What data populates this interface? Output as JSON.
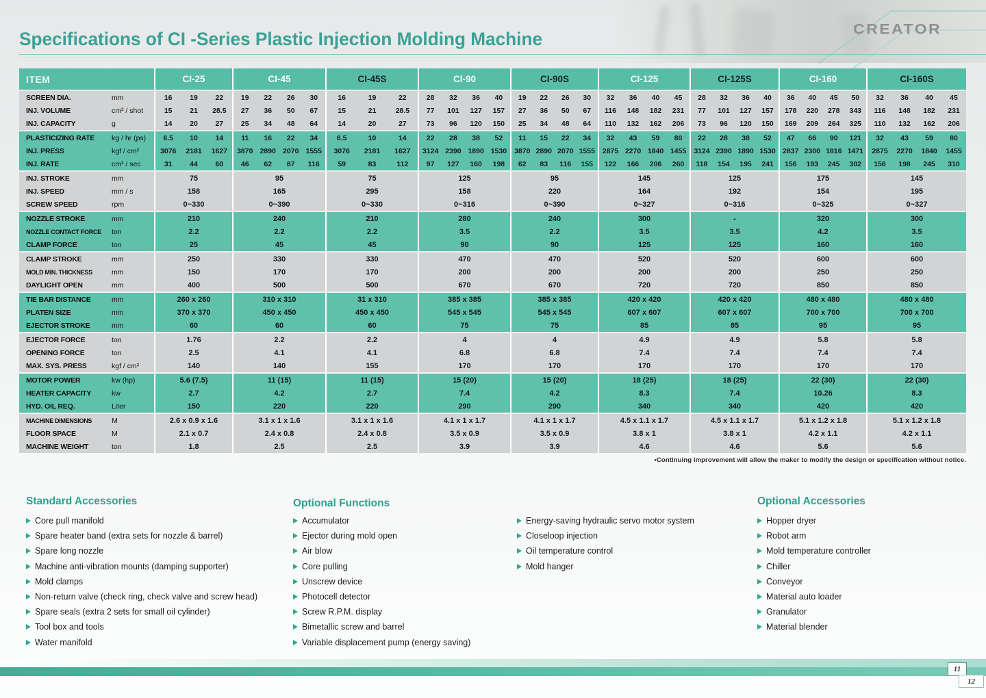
{
  "header": {
    "title": "Specifications of CI -Series Plastic Injection Molding Machine",
    "logo": "CREATOR"
  },
  "colors": {
    "header_teal": "#57bda7",
    "teal_band": "#5fc1ab",
    "gray_band": "#d2d3d4",
    "title_teal": "#3ba196",
    "accent_arrow": "#2fa894"
  },
  "table": {
    "item_header": "ITEM",
    "models": [
      {
        "label": "CI-25",
        "style": "light"
      },
      {
        "label": "CI-45",
        "style": "light"
      },
      {
        "label": "CI-45S",
        "style": "dark"
      },
      {
        "label": "CI-90",
        "style": "light"
      },
      {
        "label": "CI-90S",
        "style": "dark"
      },
      {
        "label": "CI-125",
        "style": "light"
      },
      {
        "label": "CI-125S",
        "style": "dark"
      },
      {
        "label": "CI-160",
        "style": "light"
      },
      {
        "label": "CI-160S",
        "style": "dark"
      }
    ],
    "rows": [
      {
        "label": "SCREEN DIA.",
        "unit": "mm",
        "band": "gray",
        "values": [
          [
            "16",
            "19",
            "22"
          ],
          [
            "19",
            "22",
            "26",
            "30"
          ],
          [
            "16",
            "19",
            "22"
          ],
          [
            "28",
            "32",
            "36",
            "40"
          ],
          [
            "19",
            "22",
            "26",
            "30"
          ],
          [
            "32",
            "36",
            "40",
            "45"
          ],
          [
            "28",
            "32",
            "36",
            "40"
          ],
          [
            "36",
            "40",
            "45",
            "50"
          ],
          [
            "32",
            "36",
            "40",
            "45"
          ]
        ]
      },
      {
        "label": "INJ. VOLUME",
        "unit": "cm³ / shot",
        "band": "gray",
        "values": [
          [
            "15",
            "21",
            "28.5"
          ],
          [
            "27",
            "36",
            "50",
            "67"
          ],
          [
            "15",
            "21",
            "28.5"
          ],
          [
            "77",
            "101",
            "127",
            "157"
          ],
          [
            "27",
            "36",
            "50",
            "67"
          ],
          [
            "116",
            "148",
            "182",
            "231"
          ],
          [
            "77",
            "101",
            "127",
            "157"
          ],
          [
            "178",
            "220",
            "278",
            "343"
          ],
          [
            "116",
            "148",
            "182",
            "231"
          ]
        ]
      },
      {
        "label": "INJ. CAPACITY",
        "unit": "g",
        "band": "gray",
        "values": [
          [
            "14",
            "20",
            "27"
          ],
          [
            "25",
            "34",
            "48",
            "64"
          ],
          [
            "14",
            "20",
            "27"
          ],
          [
            "73",
            "96",
            "120",
            "150"
          ],
          [
            "25",
            "34",
            "48",
            "64"
          ],
          [
            "110",
            "132",
            "162",
            "206"
          ],
          [
            "73",
            "96",
            "120",
            "150"
          ],
          [
            "169",
            "209",
            "264",
            "325"
          ],
          [
            "110",
            "132",
            "162",
            "206"
          ]
        ]
      },
      {
        "label": "PLASTICIZING RATE",
        "unit": "kg / hr (ps)",
        "band": "teal",
        "values": [
          [
            "6.5",
            "10",
            "14"
          ],
          [
            "11",
            "16",
            "22",
            "34"
          ],
          [
            "6.5",
            "10",
            "14"
          ],
          [
            "22",
            "28",
            "38",
            "52"
          ],
          [
            "11",
            "15",
            "22",
            "34"
          ],
          [
            "32",
            "43",
            "59",
            "80"
          ],
          [
            "22",
            "28",
            "38",
            "52"
          ],
          [
            "47",
            "66",
            "90",
            "121"
          ],
          [
            "32",
            "43",
            "59",
            "80"
          ]
        ]
      },
      {
        "label": "INJ. PRESS",
        "unit": "kgf / cm²",
        "band": "teal",
        "values": [
          [
            "3076",
            "2181",
            "1627"
          ],
          [
            "3870",
            "2890",
            "2070",
            "1555"
          ],
          [
            "3076",
            "2181",
            "1627"
          ],
          [
            "3124",
            "2390",
            "1890",
            "1530"
          ],
          [
            "3870",
            "2890",
            "2070",
            "1555"
          ],
          [
            "2875",
            "2270",
            "1840",
            "1455"
          ],
          [
            "3124",
            "2390",
            "1890",
            "1530"
          ],
          [
            "2837",
            "2300",
            "1816",
            "1471"
          ],
          [
            "2875",
            "2270",
            "1840",
            "1455"
          ]
        ]
      },
      {
        "label": "INJ. RATE",
        "unit": "cm³ / sec",
        "band": "teal",
        "values": [
          [
            "31",
            "44",
            "60"
          ],
          [
            "46",
            "62",
            "87",
            "116"
          ],
          [
            "59",
            "83",
            "112"
          ],
          [
            "97",
            "127",
            "160",
            "198"
          ],
          [
            "62",
            "83",
            "116",
            "155"
          ],
          [
            "122",
            "166",
            "206",
            "260"
          ],
          [
            "118",
            "154",
            "195",
            "241"
          ],
          [
            "156",
            "193",
            "245",
            "302"
          ],
          [
            "156",
            "198",
            "245",
            "310"
          ]
        ]
      },
      {
        "label": "INJ. STROKE",
        "unit": "mm",
        "band": "gray",
        "values": [
          "75",
          "95",
          "75",
          "125",
          "95",
          "145",
          "125",
          "175",
          "145"
        ]
      },
      {
        "label": "INJ. SPEED",
        "unit": "mm / s",
        "band": "gray",
        "values": [
          "158",
          "165",
          "295",
          "158",
          "220",
          "164",
          "192",
          "154",
          "195"
        ]
      },
      {
        "label": "SCREW SPEED",
        "unit": "rpm",
        "band": "gray",
        "values": [
          "0~330",
          "0~390",
          "0~330",
          "0~316",
          "0~390",
          "0~327",
          "0~316",
          "0~325",
          "0~327"
        ]
      },
      {
        "label": "NOZZLE STROKE",
        "unit": "mm",
        "band": "teal",
        "values": [
          "210",
          "240",
          "210",
          "280",
          "240",
          "300",
          "-",
          "320",
          "300"
        ]
      },
      {
        "label": "NOZZLE CONTACT FORCE",
        "unit": "ton",
        "band": "teal",
        "values": [
          "2.2",
          "2.2",
          "2.2",
          "3.5",
          "2.2",
          "3.5",
          "3.5",
          "4.2",
          "3.5"
        ]
      },
      {
        "label": "CLAMP FORCE",
        "unit": "ton",
        "band": "teal",
        "values": [
          "25",
          "45",
          "45",
          "90",
          "90",
          "125",
          "125",
          "160",
          "160"
        ]
      },
      {
        "label": "CLAMP STROKE",
        "unit": "mm",
        "band": "gray",
        "values": [
          "250",
          "330",
          "330",
          "470",
          "470",
          "520",
          "520",
          "600",
          "600"
        ]
      },
      {
        "label": "MOLD MIN. THICKNESS",
        "unit": "mm",
        "band": "gray",
        "values": [
          "150",
          "170",
          "170",
          "200",
          "200",
          "200",
          "200",
          "250",
          "250"
        ]
      },
      {
        "label": "DAYLIGHT OPEN",
        "unit": "mm",
        "band": "gray",
        "values": [
          "400",
          "500",
          "500",
          "670",
          "670",
          "720",
          "720",
          "850",
          "850"
        ]
      },
      {
        "label": "TIE BAR DISTANCE",
        "unit": "mm",
        "band": "teal",
        "values": [
          "260 x 260",
          "310 x 310",
          "31 x 310",
          "385 x 385",
          "385 x 385",
          "420 x 420",
          "420 x 420",
          "480 x 480",
          "480 x 480"
        ]
      },
      {
        "label": "PLATEN SIZE",
        "unit": "mm",
        "band": "teal",
        "values": [
          "370 x 370",
          "450 x 450",
          "450 x 450",
          "545 x 545",
          "545 x 545",
          "607 x 607",
          "607 x 607",
          "700 x 700",
          "700 x 700"
        ]
      },
      {
        "label": "EJECTOR STROKE",
        "unit": "mm",
        "band": "teal",
        "values": [
          "60",
          "60",
          "60",
          "75",
          "75",
          "85",
          "85",
          "95",
          "95"
        ]
      },
      {
        "label": "EJECTOR FORCE",
        "unit": "ton",
        "band": "gray",
        "values": [
          "1.76",
          "2.2",
          "2.2",
          "4",
          "4",
          "4.9",
          "4.9",
          "5.8",
          "5.8"
        ]
      },
      {
        "label": "OPENING FORCE",
        "unit": "ton",
        "band": "gray",
        "values": [
          "2.5",
          "4.1",
          "4.1",
          "6.8",
          "6.8",
          "7.4",
          "7.4",
          "7.4",
          "7.4"
        ]
      },
      {
        "label": "MAX. SYS. PRESS",
        "unit": "kgf / cm²",
        "band": "gray",
        "values": [
          "140",
          "140",
          "155",
          "170",
          "170",
          "170",
          "170",
          "170",
          "170"
        ]
      },
      {
        "label": "MOTOR POWER",
        "unit": "kw (hp)",
        "band": "teal",
        "values": [
          "5.6 (7.5)",
          "11 (15)",
          "11 (15)",
          "15 (20)",
          "15 (20)",
          "18 (25)",
          "18 (25)",
          "22 (30)",
          "22 (30)"
        ]
      },
      {
        "label": "HEATER CAPACITY",
        "unit": "kw",
        "band": "teal",
        "values": [
          "2.7",
          "4.2",
          "2.7",
          "7.4",
          "4.2",
          "8.3",
          "7.4",
          "10.26",
          "8.3"
        ]
      },
      {
        "label": "HYD. OIL REQ.",
        "unit": "Liter",
        "band": "teal",
        "values": [
          "150",
          "220",
          "220",
          "290",
          "290",
          "340",
          "340",
          "420",
          "420"
        ]
      },
      {
        "label": "MACHINE DIMENSIONS",
        "unit": "M",
        "band": "gray",
        "values": [
          "2.6 x 0.9 x 1.6",
          "3.1 x 1 x 1.6",
          "3.1 x 1 x 1.6",
          "4.1 x 1 x 1.7",
          "4.1 x 1 x 1.7",
          "4.5 x 1.1 x 1.7",
          "4.5 x 1.1 x 1.7",
          "5.1 x 1.2 x 1.8",
          "5.1 x 1.2 x 1.8"
        ]
      },
      {
        "label": "FLOOR SPACE",
        "unit": "M",
        "band": "gray",
        "values": [
          "2.1 x 0.7",
          "2.4 x 0.8",
          "2.4 x 0.8",
          "3.5 x 0.9",
          "3.5 x 0.9",
          "3.8 x 1",
          "3.8 x 1",
          "4.2 x 1.1",
          "4.2 x 1.1"
        ]
      },
      {
        "label": "MACHINE WEIGHT",
        "unit": "ton",
        "band": "gray",
        "values": [
          "1.8",
          "2.5",
          "2.5",
          "3.9",
          "3.9",
          "4.6",
          "4.6",
          "5.6",
          "5.6"
        ]
      }
    ]
  },
  "footnote": "•Continuing improvement will allow the maker to modify the design or specification without notice.",
  "sections": {
    "standard": {
      "heading": "Standard Accessories",
      "items": [
        "Core pull manifold",
        "Spare heater band (extra sets for nozzle & barrel)",
        "Spare long nozzle",
        "Machine anti-vibration mounts (damping supporter)",
        "Mold clamps",
        "Non-return valve (check ring, check valve and screw head)",
        "Spare seals (extra 2 sets for small oil cylinder)",
        "Tool box and tools",
        "Water manifold"
      ]
    },
    "optional_functions": {
      "heading": "Optional Functions",
      "items_col1": [
        "Accumulator",
        "Ejector during mold open",
        "Air blow",
        "Core pulling",
        "Unscrew device",
        "Photocell detector",
        "Screw R.P.M. display",
        "Bimetallic screw and barrel",
        "Variable displacement pump (energy saving)"
      ],
      "items_col2": [
        "Energy-saving hydraulic servo motor system",
        "Closeloop injection",
        "Oil temperature control",
        "Mold hanger"
      ]
    },
    "optional_accessories": {
      "heading": "Optional Accessories",
      "items": [
        "Hopper dryer",
        "Robot arm",
        "Mold temperature controller",
        "Chiller",
        "Conveyor",
        "Material auto loader",
        "Granulator",
        "Material blender"
      ]
    }
  },
  "footer": {
    "tabs": [
      "11",
      "12"
    ]
  }
}
